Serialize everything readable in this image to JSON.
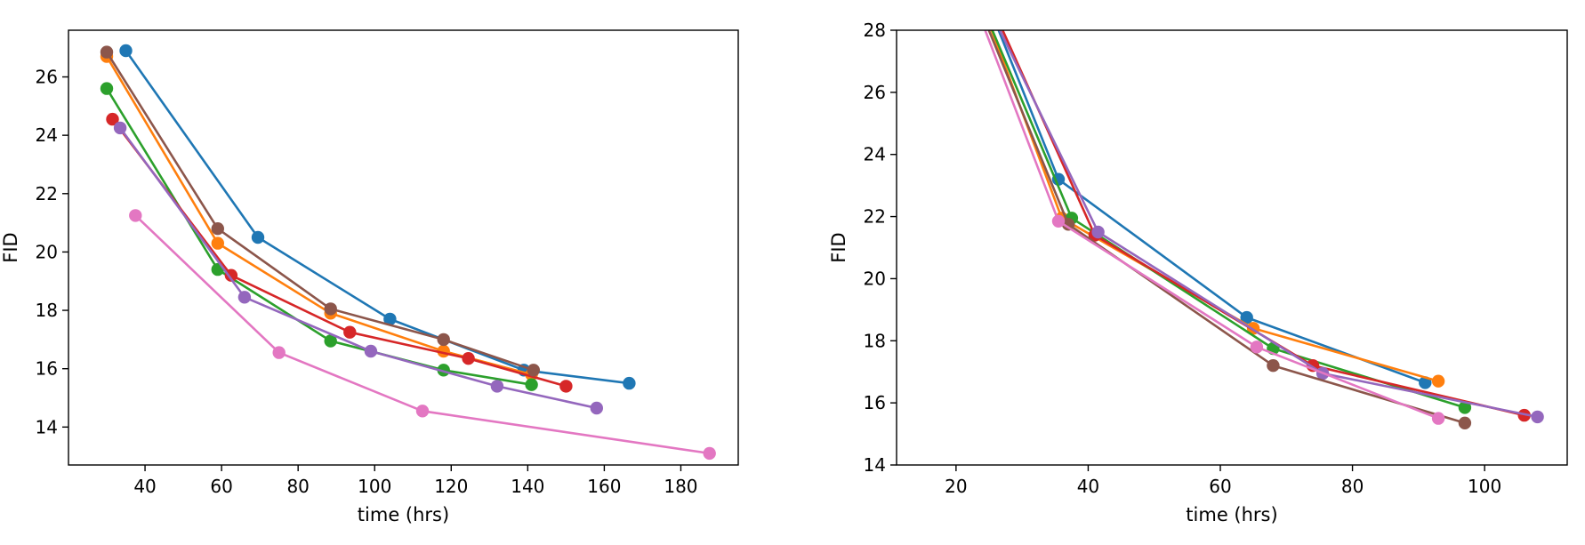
{
  "colors": {
    "series": [
      "#1f77b4",
      "#ff7f0e",
      "#2ca02c",
      "#d62728",
      "#9467bd",
      "#8c564b",
      "#e377c2"
    ],
    "axis": "#000000",
    "background": "#ffffff"
  },
  "chart_data": [
    {
      "type": "line",
      "xlabel": "time (hrs)",
      "ylabel": "FID",
      "xlim": [
        20,
        195
      ],
      "ylim": [
        12.7,
        27.6
      ],
      "xticks": [
        "40",
        "60",
        "80",
        "100",
        "120",
        "140",
        "160",
        "180"
      ],
      "yticks": [
        "14",
        "16",
        "18",
        "20",
        "22",
        "24",
        "26"
      ],
      "grid": false,
      "series": [
        {
          "x": [
            35,
            69.5,
            104,
            139,
            166.5
          ],
          "y": [
            26.9,
            20.5,
            17.7,
            15.95,
            15.5
          ]
        },
        {
          "x": [
            30,
            59,
            88.5,
            118,
            141
          ],
          "y": [
            26.7,
            20.3,
            17.9,
            16.6,
            15.8
          ]
        },
        {
          "x": [
            30,
            59,
            88.5,
            118,
            141
          ],
          "y": [
            25.6,
            19.4,
            16.95,
            15.95,
            15.45
          ]
        },
        {
          "x": [
            31.5,
            62.5,
            93.5,
            124.5,
            150
          ],
          "y": [
            24.55,
            19.2,
            17.25,
            16.35,
            15.4
          ]
        },
        {
          "x": [
            33.5,
            66,
            99,
            132,
            158
          ],
          "y": [
            24.25,
            18.45,
            16.6,
            15.4,
            14.65
          ]
        },
        {
          "x": [
            30,
            59,
            88.5,
            118,
            141.5
          ],
          "y": [
            26.85,
            20.8,
            18.05,
            17.0,
            15.95
          ]
        },
        {
          "x": [
            37.5,
            75,
            112.5,
            187.5
          ],
          "y": [
            21.25,
            16.55,
            14.55,
            13.1
          ]
        }
      ]
    },
    {
      "type": "line",
      "xlabel": "time (hrs)",
      "ylabel": "FID",
      "xlim": [
        11,
        112.5
      ],
      "ylim": [
        14,
        28
      ],
      "xticks": [
        "20",
        "40",
        "60",
        "80",
        "100"
      ],
      "yticks": [
        "14",
        "16",
        "18",
        "20",
        "22",
        "24",
        "26",
        "28"
      ],
      "grid": false,
      "series": [
        {
          "x": [
            25.5,
            35.5,
            64,
            91
          ],
          "y": [
            28.5,
            23.2,
            18.75,
            16.65
          ]
        },
        {
          "x": [
            24.5,
            36,
            65,
            93
          ],
          "y": [
            28.5,
            21.95,
            18.4,
            16.7
          ]
        },
        {
          "x": [
            24.5,
            37.5,
            68,
            97
          ],
          "y": [
            28.5,
            21.95,
            17.75,
            15.85
          ]
        },
        {
          "x": [
            26,
            41,
            74,
            106
          ],
          "y": [
            28.5,
            21.4,
            17.2,
            15.6
          ]
        },
        {
          "x": [
            25.5,
            41.5,
            75.5,
            108
          ],
          "y": [
            28.5,
            21.5,
            16.95,
            15.55
          ]
        },
        {
          "x": [
            24,
            37,
            68,
            97
          ],
          "y": [
            28.5,
            21.75,
            17.2,
            15.35
          ]
        },
        {
          "x": [
            23.5,
            35.5,
            65.5,
            93
          ],
          "y": [
            28.5,
            21.85,
            17.8,
            15.5
          ]
        }
      ]
    }
  ]
}
